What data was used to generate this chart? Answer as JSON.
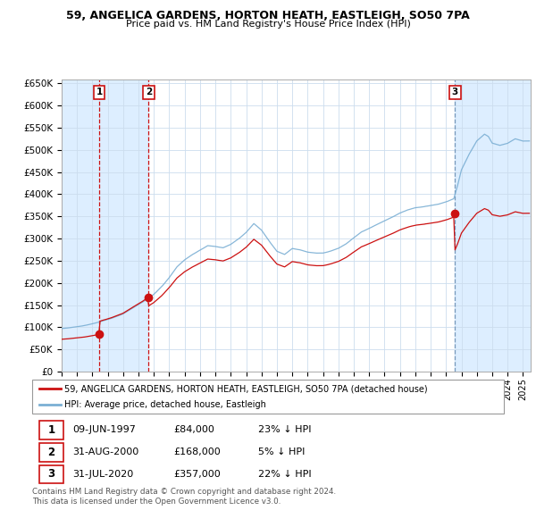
{
  "title_line1": "59, ANGELICA GARDENS, HORTON HEATH, EASTLEIGH, SO50 7PA",
  "title_line2": "Price paid vs. HM Land Registry's House Price Index (HPI)",
  "background_color": "#ffffff",
  "plot_bg_color": "#ffffff",
  "grid_color": "#ccddee",
  "hpi_color": "#7bafd4",
  "price_color": "#cc1111",
  "sale_marker_color": "#cc1111",
  "vline_color_red": "#cc1111",
  "vline_color_blue": "#7799bb",
  "shade_color": "#ddeeff",
  "ylim": [
    0,
    660000
  ],
  "yticks": [
    0,
    50000,
    100000,
    150000,
    200000,
    250000,
    300000,
    350000,
    400000,
    450000,
    500000,
    550000,
    600000,
    650000
  ],
  "ytick_labels": [
    "£0",
    "£50K",
    "£100K",
    "£150K",
    "£200K",
    "£250K",
    "£300K",
    "£350K",
    "£400K",
    "£450K",
    "£500K",
    "£550K",
    "£600K",
    "£650K"
  ],
  "xlim_start": 1995.0,
  "xlim_end": 2025.5,
  "sale_dates": [
    1997.44,
    2000.66,
    2020.58
  ],
  "sale_prices": [
    84000,
    168000,
    357000
  ],
  "sale_labels": [
    "1",
    "2",
    "3"
  ],
  "legend_entries": [
    "59, ANGELICA GARDENS, HORTON HEATH, EASTLEIGH, SO50 7PA (detached house)",
    "HPI: Average price, detached house, Eastleigh"
  ],
  "table_rows": [
    [
      "1",
      "09-JUN-1997",
      "£84,000",
      "23% ↓ HPI"
    ],
    [
      "2",
      "31-AUG-2000",
      "£168,000",
      "5% ↓ HPI"
    ],
    [
      "3",
      "31-JUL-2020",
      "£357,000",
      "22% ↓ HPI"
    ]
  ],
  "footnote": "Contains HM Land Registry data © Crown copyright and database right 2024.\nThis data is licensed under the Open Government Licence v3.0."
}
